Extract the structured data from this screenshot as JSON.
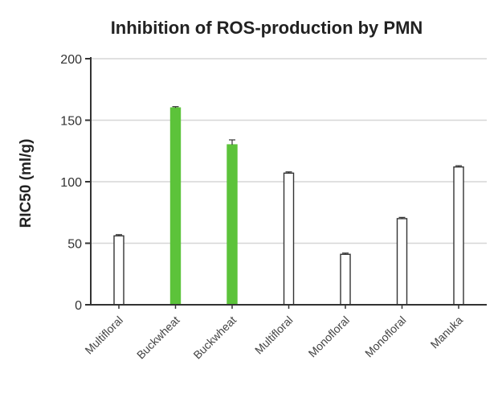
{
  "chart_data": {
    "type": "bar",
    "title": "Inhibition of ROS-production by PMN",
    "xlabel": "",
    "ylabel": "RIC50 (ml/g)",
    "ylim": [
      0,
      200
    ],
    "yticks": [
      0,
      50,
      100,
      150,
      200
    ],
    "grid": true,
    "legend": "none",
    "categories": [
      "Multifloral",
      "Buckwheat",
      "Buckwheat",
      "Multifloral",
      "Monofloral",
      "Monofloral",
      "Manuka"
    ],
    "values": [
      56,
      160,
      130,
      107,
      41,
      70,
      112
    ],
    "errors": [
      1,
      1,
      4,
      1,
      1,
      1,
      1
    ],
    "highlighted": [
      false,
      true,
      true,
      false,
      false,
      false,
      false
    ],
    "colors": {
      "highlight": "#5cc33a",
      "normal": "#ffffff",
      "outline": "#333333",
      "grid": "#d6d6d6",
      "axis": "#333333"
    }
  }
}
